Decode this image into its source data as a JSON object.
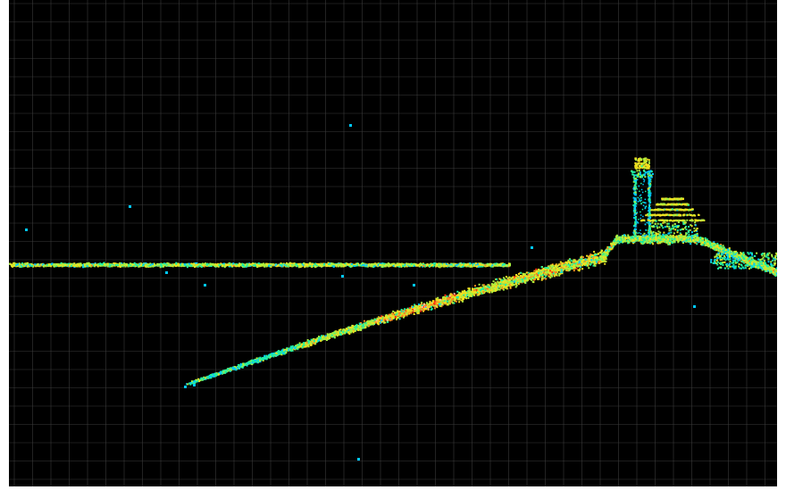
{
  "viewer": {
    "background_color": "#000000",
    "grid_color": "#3a3a3a",
    "grid_visible": true,
    "view": "side-profile"
  },
  "point_cloud": {
    "color_scale": [
      "#00c8ff",
      "#20f0a0",
      "#a8f040",
      "#f0e020",
      "#ff8a20",
      "#ff3010",
      "#ffb8a0"
    ],
    "features": [
      "horizontal-ground-line",
      "sloped-ramp",
      "cliff-mound",
      "lighthouse-tower",
      "lighthouse-cottage",
      "stray-points"
    ]
  }
}
